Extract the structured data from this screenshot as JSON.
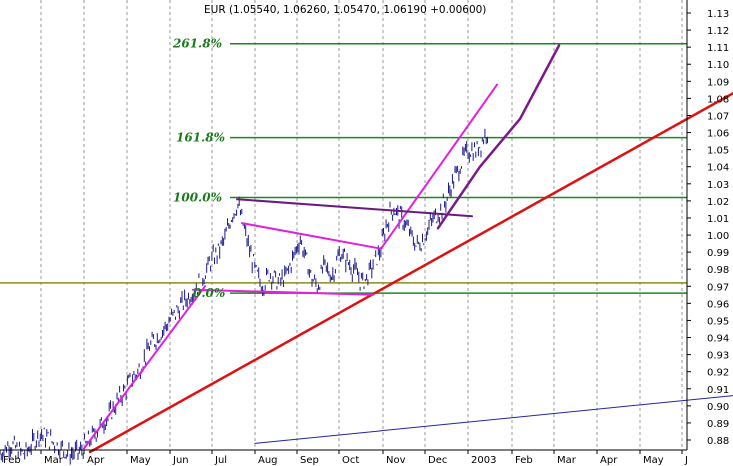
{
  "chart_data": {
    "type": "line",
    "symbol": "EUR",
    "title": "EUR (1.05540, 1.06260, 1.05470, 1.06190 +0.00600)",
    "ylim": [
      0.875,
      1.135
    ],
    "y_ticks": [
      "1.13",
      "1.12",
      "1.11",
      "1.10",
      "1.09",
      "1.08",
      "1.07",
      "1.06",
      "1.05",
      "1.04",
      "1.03",
      "1.02",
      "1.01",
      "1.00",
      "0.99",
      "0.98",
      "0.97",
      "0.96",
      "0.95",
      "0.94",
      "0.93",
      "0.92",
      "0.91",
      "0.90",
      "0.89",
      "0.88"
    ],
    "x_months": [
      "Feb",
      "Mar",
      "Apr",
      "May",
      "Jun",
      "Jul",
      "Aug",
      "Sep",
      "Oct",
      "Nov",
      "Dec",
      "2003",
      "Feb",
      "Mar",
      "Apr",
      "May",
      "J"
    ],
    "grid": "vertical dashed at month starts",
    "fib_levels": [
      {
        "label": "0.0%",
        "value": 0.966
      },
      {
        "label": "100.0%",
        "value": 1.022
      },
      {
        "label": "161.8%",
        "value": 1.057
      },
      {
        "label": "261.8%",
        "value": 1.112
      }
    ],
    "horizontal_line": {
      "value": 0.972,
      "color": "#8b8b1a"
    },
    "price_series": {
      "name": "EUR",
      "color": "#1a1a8c",
      "anchors": [
        [
          0,
          0.872
        ],
        [
          10,
          0.878
        ],
        [
          20,
          0.873
        ],
        [
          25,
          0.872
        ],
        [
          40,
          0.884
        ],
        [
          55,
          0.878
        ],
        [
          70,
          0.872
        ],
        [
          80,
          0.873
        ],
        [
          90,
          0.88
        ],
        [
          100,
          0.888
        ],
        [
          110,
          0.895
        ],
        [
          120,
          0.905
        ],
        [
          130,
          0.914
        ],
        [
          140,
          0.922
        ],
        [
          150,
          0.935
        ],
        [
          160,
          0.942
        ],
        [
          170,
          0.95
        ],
        [
          180,
          0.958
        ],
        [
          190,
          0.965
        ],
        [
          200,
          0.972
        ],
        [
          210,
          0.984
        ],
        [
          218,
          0.99
        ],
        [
          225,
          0.998
        ],
        [
          232,
          1.012
        ],
        [
          238,
          1.018
        ],
        [
          244,
          1.004
        ],
        [
          250,
          0.99
        ],
        [
          256,
          0.978
        ],
        [
          262,
          0.97
        ],
        [
          270,
          0.978
        ],
        [
          278,
          0.972
        ],
        [
          286,
          0.976
        ],
        [
          294,
          0.988
        ],
        [
          300,
          0.998
        ],
        [
          306,
          0.986
        ],
        [
          312,
          0.974
        ],
        [
          318,
          0.97
        ],
        [
          324,
          0.982
        ],
        [
          332,
          0.976
        ],
        [
          340,
          0.99
        ],
        [
          348,
          0.984
        ],
        [
          356,
          0.978
        ],
        [
          362,
          0.972
        ],
        [
          368,
          0.976
        ],
        [
          374,
          0.984
        ],
        [
          380,
          0.99
        ],
        [
          386,
          1.005
        ],
        [
          392,
          1.016
        ],
        [
          398,
          1.012
        ],
        [
          404,
          1.008
        ],
        [
          410,
          1.001
        ],
        [
          416,
          0.994
        ],
        [
          422,
          0.996
        ],
        [
          428,
          1.004
        ],
        [
          434,
          1.01
        ],
        [
          440,
          1.014
        ],
        [
          446,
          1.02
        ],
        [
          452,
          1.03
        ],
        [
          458,
          1.038
        ],
        [
          464,
          1.046
        ],
        [
          470,
          1.05
        ],
        [
          476,
          1.049
        ],
        [
          482,
          1.055
        ],
        [
          488,
          1.062
        ]
      ]
    },
    "trendlines": [
      {
        "name": "red support",
        "color": "#dd1111",
        "width": 2.5,
        "points": [
          [
            90,
            0.873
          ],
          [
            733,
            1.083
          ]
        ]
      },
      {
        "name": "blue lower",
        "color": "#2222aa",
        "width": 1,
        "points": [
          [
            255,
            0.878
          ],
          [
            733,
            0.906
          ]
        ]
      },
      {
        "name": "magenta rally",
        "color": "#e020e0",
        "width": 2,
        "points": [
          [
            84,
            0.875
          ],
          [
            205,
            0.97
          ]
        ]
      },
      {
        "name": "magenta upper flag",
        "color": "#e020e0",
        "width": 2,
        "points": [
          [
            242,
            1.007
          ],
          [
            381,
            0.992
          ]
        ]
      },
      {
        "name": "magenta lower flag",
        "color": "#e020e0",
        "width": 2,
        "points": [
          [
            193,
            0.968
          ],
          [
            373,
            0.965
          ]
        ]
      },
      {
        "name": "magenta breakout",
        "color": "#e020e0",
        "width": 2,
        "points": [
          [
            381,
            0.992
          ],
          [
            497,
            1.088
          ]
        ]
      },
      {
        "name": "purple resistance",
        "color": "#6a1a80",
        "width": 2,
        "points": [
          [
            237,
            1.021
          ],
          [
            472,
            1.011
          ]
        ]
      },
      {
        "name": "purple channel",
        "color": "#7a1a8a",
        "width": 2.5,
        "points": [
          [
            438,
            1.004
          ],
          [
            480,
            1.04
          ],
          [
            520,
            1.068
          ],
          [
            559,
            1.111
          ]
        ]
      }
    ]
  }
}
